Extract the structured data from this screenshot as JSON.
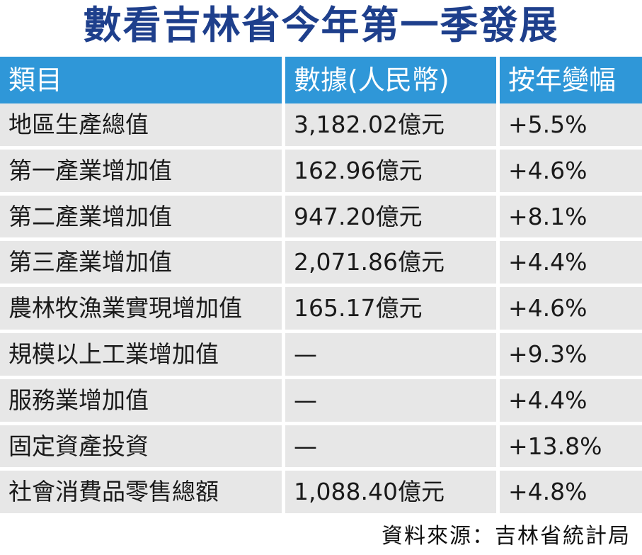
{
  "title": "數看吉林省今年第一季發展",
  "source": "資料來源：吉林省統計局",
  "chart_data": {
    "type": "table",
    "columns": [
      "類目",
      "數據(人民幣)",
      "按年變幅"
    ],
    "rows": [
      [
        "地區生產總值",
        "3,182.02億元",
        "+5.5%"
      ],
      [
        "第一產業增加值",
        "162.96億元",
        "+4.6%"
      ],
      [
        "第二產業增加值",
        "947.20億元",
        "+8.1%"
      ],
      [
        "第三產業增加值",
        "2,071.86億元",
        "+4.4%"
      ],
      [
        "農林牧漁業實現增加值",
        "165.17億元",
        "+4.6%"
      ],
      [
        "規模以上工業增加值",
        "—",
        "+9.3%"
      ],
      [
        "服務業增加值",
        "—",
        "+4.4%"
      ],
      [
        "固定資產投資",
        "—",
        "+13.8%"
      ],
      [
        "社會消費品零售總額",
        "1,088.40億元",
        "+4.8%"
      ]
    ]
  },
  "colors": {
    "title": "#1e3f8c",
    "header_bg": "#2f97d8",
    "header_text": "#ffffff",
    "row_bg": "#e7e7e7",
    "row_text": "#1a1a1a"
  }
}
